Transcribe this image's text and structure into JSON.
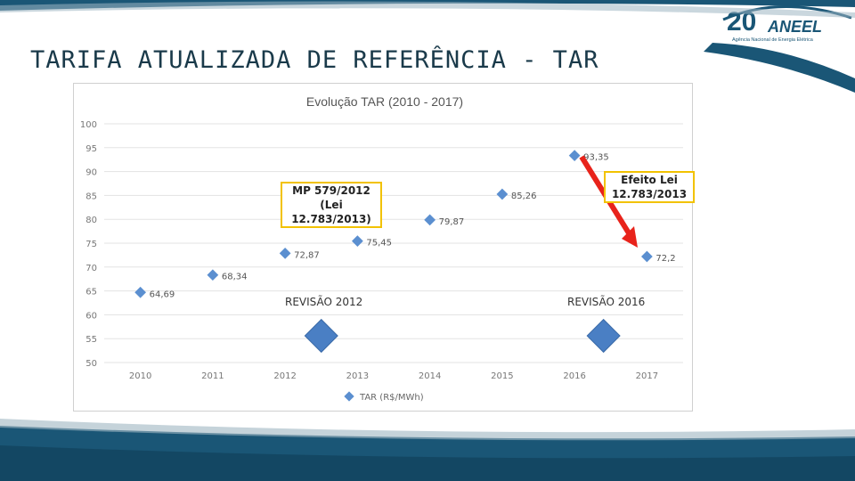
{
  "slide": {
    "title": "TARIFA ATUALIZADA DE REFERÊNCIA - TAR",
    "logo": {
      "number": "20",
      "name": "ANEEL",
      "tagline": "Agência Nacional de Energia Elétrica"
    }
  },
  "colors": {
    "accent": "#1a5676",
    "marker": "#5b8fd0",
    "arrow": "#e8231b",
    "box_border": "#f2c200"
  },
  "chart_data": {
    "type": "scatter",
    "title": "Evolução TAR (2010 - 2017)",
    "categories": [
      "2010",
      "2011",
      "2012",
      "2013",
      "2014",
      "2015",
      "2016",
      "2017"
    ],
    "series": [
      {
        "name": "TAR (R$/MWh)",
        "values": [
          64.69,
          68.34,
          72.87,
          75.45,
          79.87,
          85.26,
          93.35,
          72.2
        ],
        "labels": [
          "64,69",
          "68,34",
          "72,87",
          "75,45",
          "79,87",
          "85,26",
          "93,35",
          "72,2"
        ]
      }
    ],
    "ylim": [
      50,
      100
    ],
    "yticks": [
      "50",
      "55",
      "60",
      "65",
      "70",
      "75",
      "80",
      "85",
      "90",
      "95",
      "100"
    ],
    "grid": true,
    "legend_position": "bottom",
    "annotations": {
      "mp": [
        "MP 579/2012",
        "(Lei 12.783/2013)"
      ],
      "efeito": [
        "Efeito Lei",
        "12.783/2013"
      ],
      "revisao_2012": "REVISÃO 2012",
      "revisao_2016": "REVISÃO 2016"
    }
  }
}
